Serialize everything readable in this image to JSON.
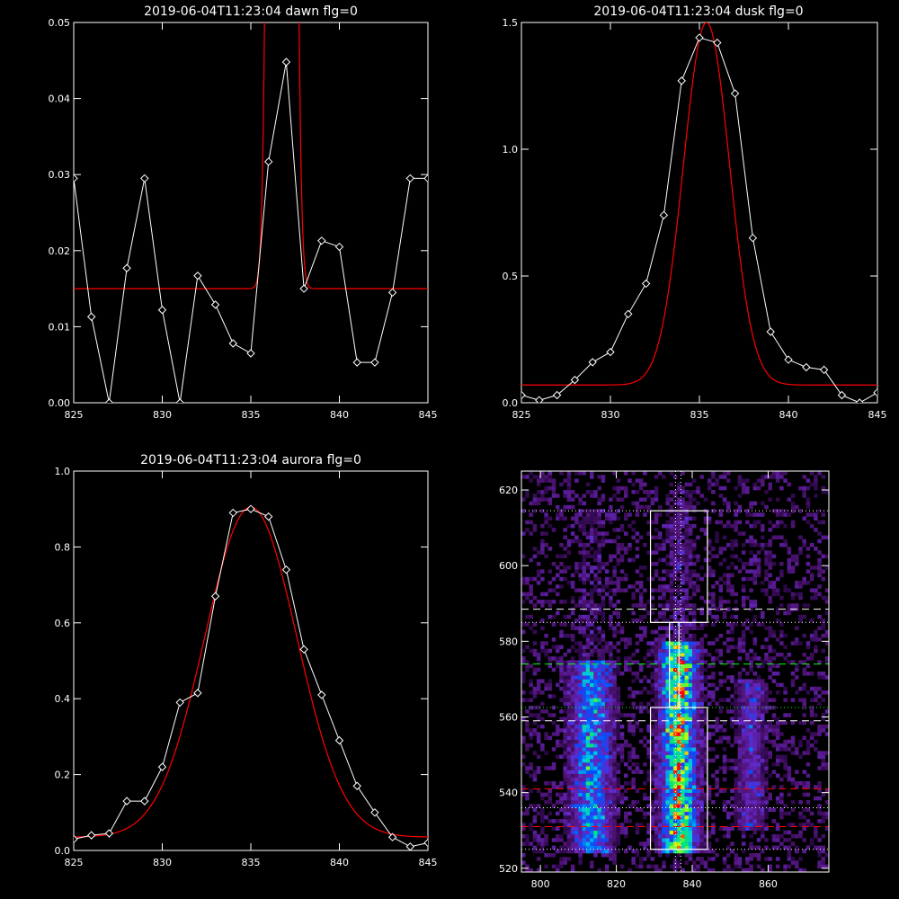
{
  "colors": {
    "background": "#000000",
    "axes": "#ffffff",
    "data": "#ffffff",
    "fit": "#ff0000",
    "green": "#00ff00"
  },
  "chart_data": [
    {
      "type": "line",
      "title": "2019-06-04T11:23:04 dawn flg=0",
      "xlim": [
        825,
        845
      ],
      "ylim": [
        0,
        0.05
      ],
      "xticks": [
        "825",
        "830",
        "835",
        "840",
        "845"
      ],
      "yticks": [
        "0.00",
        "0.01",
        "0.02",
        "0.03",
        "0.04",
        "0.05"
      ],
      "series": [
        {
          "x": [
            825,
            826,
            827,
            828,
            829,
            830,
            831,
            832,
            833,
            834,
            835,
            836,
            837,
            838,
            839,
            840,
            841,
            842,
            843,
            844,
            845
          ],
          "y": [
            0.0295,
            0.0113,
            0.0,
            0.0177,
            0.0295,
            0.0122,
            0.0,
            0.0167,
            0.0129,
            0.0078,
            0.0065,
            0.0317,
            0.0448,
            0.015,
            0.0213,
            0.0205,
            0.0053,
            0.0053,
            0.0145,
            0.0295,
            0.0295
          ]
        }
      ],
      "fit": {
        "baseline": 0.015,
        "amplitude": 0.95,
        "center": 836.75,
        "sigma": 0.38
      }
    },
    {
      "type": "line",
      "title": "2019-06-04T11:23:04 dusk flg=0",
      "xlim": [
        825,
        845
      ],
      "ylim": [
        0,
        1.5
      ],
      "xticks": [
        "825",
        "830",
        "835",
        "840",
        "845"
      ],
      "yticks": [
        "0.0",
        "0.5",
        "1.0",
        "1.5"
      ],
      "series": [
        {
          "x": [
            825,
            826,
            827,
            828,
            829,
            830,
            831,
            832,
            833,
            834,
            835,
            836,
            837,
            838,
            839,
            840,
            841,
            842,
            843,
            844,
            845
          ],
          "y": [
            0.03,
            0.01,
            0.03,
            0.09,
            0.16,
            0.2,
            0.35,
            0.47,
            0.74,
            1.27,
            1.44,
            1.42,
            1.22,
            0.65,
            0.28,
            0.17,
            0.14,
            0.13,
            0.03,
            0.0,
            0.04
          ]
        }
      ],
      "fit": {
        "baseline": 0.07,
        "amplitude": 1.43,
        "center": 835.4,
        "sigma": 1.3
      }
    },
    {
      "type": "line",
      "title": "2019-06-04T11:23:04 aurora flg=0",
      "xlim": [
        825,
        845
      ],
      "ylim": [
        0,
        1.0
      ],
      "xticks": [
        "825",
        "830",
        "835",
        "840",
        "845"
      ],
      "yticks": [
        "0.0",
        "0.2",
        "0.4",
        "0.6",
        "0.8",
        "1.0"
      ],
      "series": [
        {
          "x": [
            825,
            826,
            827,
            828,
            829,
            830,
            831,
            832,
            833,
            834,
            835,
            836,
            837,
            838,
            839,
            840,
            841,
            842,
            843,
            844,
            845
          ],
          "y": [
            0.03,
            0.04,
            0.045,
            0.13,
            0.13,
            0.22,
            0.39,
            0.415,
            0.67,
            0.89,
            0.9,
            0.88,
            0.74,
            0.53,
            0.41,
            0.29,
            0.17,
            0.1,
            0.035,
            0.01,
            0.02
          ]
        }
      ],
      "fit": {
        "baseline": 0.035,
        "amplitude": 0.87,
        "center": 835.0,
        "sigma": 2.6
      }
    },
    {
      "type": "heatmap",
      "title": "",
      "xlim": [
        795,
        876
      ],
      "ylim": [
        519,
        625
      ],
      "xticks": [
        "800",
        "820",
        "840",
        "860"
      ],
      "yticks": [
        "520",
        "540",
        "560",
        "580",
        "600",
        "620"
      ],
      "vertical_lines": [
        {
          "x": 835.6,
          "style": "dotted",
          "color": "#ffffff"
        },
        {
          "x": 837.0,
          "style": "dotted",
          "color": "#ffffff"
        }
      ],
      "horizontal_lines": [
        {
          "y": 614.5,
          "style": "dotted",
          "color": "#ffffff"
        },
        {
          "y": 588.5,
          "style": "dashed",
          "color": "#ffffff"
        },
        {
          "y": 585.0,
          "style": "dotted",
          "color": "#ffffff"
        },
        {
          "y": 574.0,
          "style": "dashed",
          "color": "#00ff00"
        },
        {
          "y": 562.5,
          "style": "dotted",
          "color": "#00ff00"
        },
        {
          "y": 559.0,
          "style": "dashed",
          "color": "#ffffff"
        },
        {
          "y": 541.0,
          "style": "dashed",
          "color": "#ff0000"
        },
        {
          "y": 536.0,
          "style": "dotted",
          "color": "#ffffff"
        },
        {
          "y": 531.0,
          "style": "dashed",
          "color": "#ff0000"
        },
        {
          "y": 525.0,
          "style": "dotted",
          "color": "#ffffff"
        }
      ],
      "boxes": [
        {
          "x": [
            829,
            844
          ],
          "y": [
            585,
            614.5
          ]
        },
        {
          "x": [
            829,
            844
          ],
          "y": [
            525,
            562.5
          ]
        }
      ],
      "connector": {
        "x": [
          834,
          836.5
        ],
        "y": [
          562.5,
          585
        ]
      },
      "bands": [
        {
          "center": 813.5,
          "width": 3.5,
          "y": [
            524,
            575
          ],
          "peak": 0.6
        },
        {
          "center": 836.5,
          "width": 3.0,
          "y": [
            524,
            580
          ],
          "peak": 1.0
        },
        {
          "center": 855.5,
          "width": 2.5,
          "y": [
            530,
            570
          ],
          "peak": 0.3
        }
      ]
    }
  ]
}
